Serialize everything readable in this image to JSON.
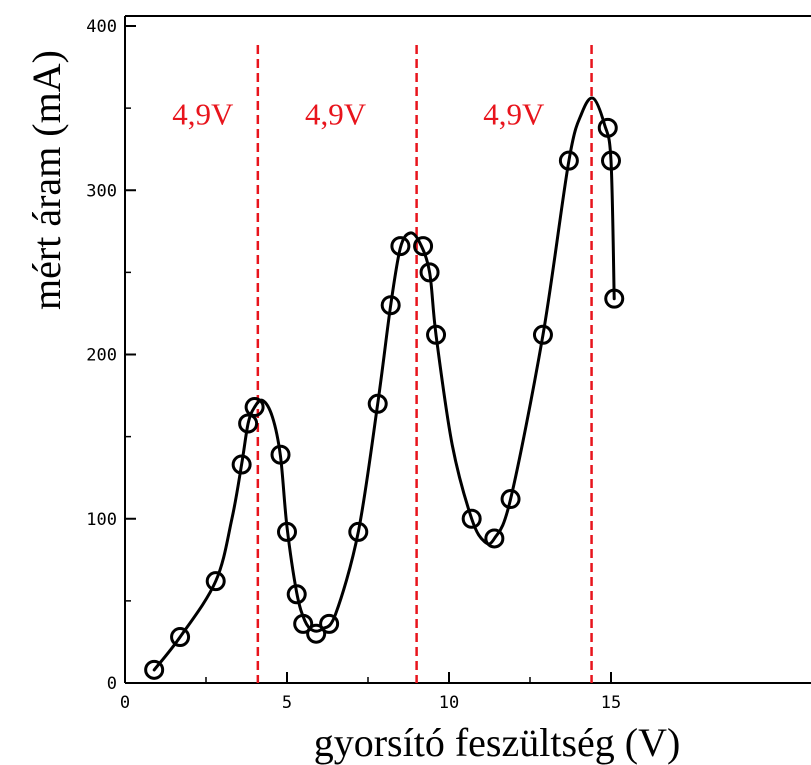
{
  "chart_data": {
    "type": "line",
    "title": "",
    "xlabel": "gyorsító feszültség (V)",
    "ylabel": "mért áram (mA)",
    "xlim": [
      0,
      17.5
    ],
    "ylim": [
      0,
      400
    ],
    "x_ticks": [
      0,
      5,
      10,
      15
    ],
    "y_ticks": [
      0,
      100,
      200,
      300,
      400
    ],
    "grid": false,
    "colors": {
      "data": "#000000",
      "annotation": "#e8141c"
    },
    "points": [
      {
        "x": 0.9,
        "y": 8
      },
      {
        "x": 1.7,
        "y": 28
      },
      {
        "x": 2.8,
        "y": 62
      },
      {
        "x": 3.6,
        "y": 133
      },
      {
        "x": 3.8,
        "y": 158
      },
      {
        "x": 4.0,
        "y": 168
      },
      {
        "x": 4.8,
        "y": 139
      },
      {
        "x": 5.0,
        "y": 92
      },
      {
        "x": 5.3,
        "y": 54
      },
      {
        "x": 5.5,
        "y": 36
      },
      {
        "x": 5.9,
        "y": 30
      },
      {
        "x": 6.3,
        "y": 36
      },
      {
        "x": 7.2,
        "y": 92
      },
      {
        "x": 7.8,
        "y": 170
      },
      {
        "x": 8.2,
        "y": 230
      },
      {
        "x": 8.5,
        "y": 266
      },
      {
        "x": 9.2,
        "y": 266
      },
      {
        "x": 9.4,
        "y": 250
      },
      {
        "x": 9.6,
        "y": 212
      },
      {
        "x": 10.7,
        "y": 100
      },
      {
        "x": 11.4,
        "y": 88
      },
      {
        "x": 11.9,
        "y": 112
      },
      {
        "x": 12.9,
        "y": 212
      },
      {
        "x": 13.7,
        "y": 318
      },
      {
        "x": 14.9,
        "y": 338
      },
      {
        "x": 15.0,
        "y": 318
      },
      {
        "x": 15.1,
        "y": 234
      }
    ],
    "curve": [
      [
        0.9,
        8
      ],
      [
        1.7,
        28
      ],
      [
        2.8,
        62
      ],
      [
        3.3,
        100
      ],
      [
        3.6,
        133
      ],
      [
        3.8,
        158
      ],
      [
        4.0,
        168
      ],
      [
        4.25,
        172
      ],
      [
        4.55,
        162
      ],
      [
        4.8,
        138
      ],
      [
        5.0,
        95
      ],
      [
        5.3,
        55
      ],
      [
        5.55,
        38
      ],
      [
        5.8,
        32
      ],
      [
        6.1,
        33
      ],
      [
        6.5,
        42
      ],
      [
        7.2,
        92
      ],
      [
        7.8,
        170
      ],
      [
        8.2,
        230
      ],
      [
        8.5,
        265
      ],
      [
        8.8,
        274
      ],
      [
        9.1,
        268
      ],
      [
        9.4,
        250
      ],
      [
        9.6,
        212
      ],
      [
        10.1,
        145
      ],
      [
        10.7,
        100
      ],
      [
        11.1,
        86
      ],
      [
        11.4,
        88
      ],
      [
        11.9,
        112
      ],
      [
        12.9,
        212
      ],
      [
        13.7,
        318
      ],
      [
        14.1,
        347
      ],
      [
        14.45,
        356
      ],
      [
        14.8,
        340
      ],
      [
        15.0,
        318
      ],
      [
        15.1,
        234
      ]
    ],
    "reference_lines": [
      {
        "x": 4.1,
        "style": "dashed"
      },
      {
        "x": 9.0,
        "style": "dashed"
      },
      {
        "x": 14.4,
        "style": "dashed"
      }
    ],
    "annotations": [
      {
        "text": "4,9V",
        "x": 2.4,
        "y": 340
      },
      {
        "text": "4,9V",
        "x": 6.5,
        "y": 340
      },
      {
        "text": "4,9V",
        "x": 12.0,
        "y": 340
      }
    ]
  }
}
